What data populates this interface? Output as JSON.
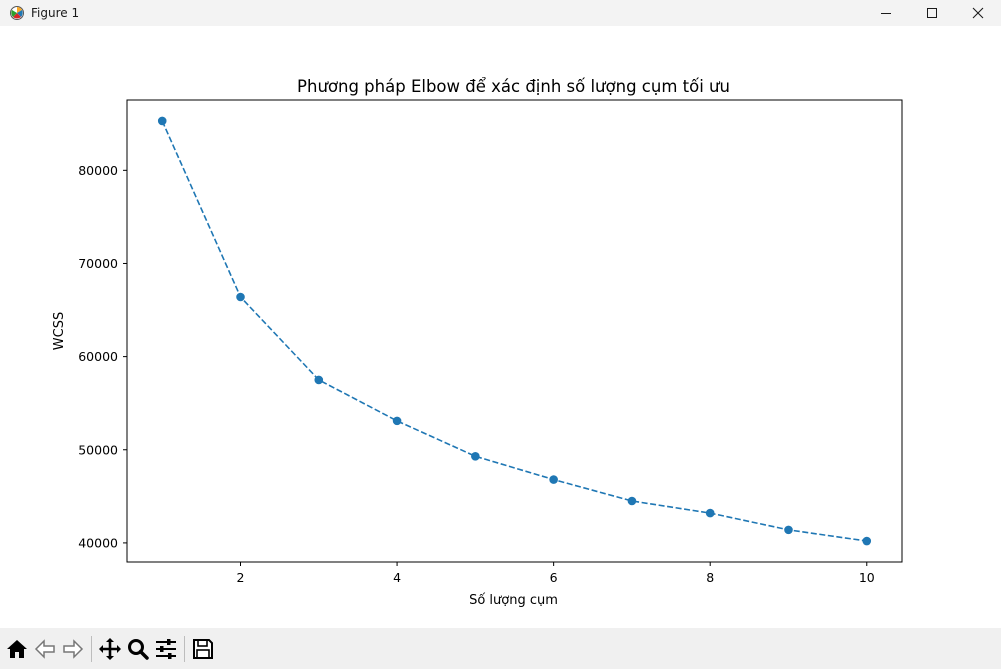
{
  "window": {
    "title": "Figure 1"
  },
  "toolbar": {
    "buttons": [
      "home-icon",
      "back-icon",
      "forward-icon",
      "pan-icon",
      "zoom-icon",
      "configure-subplots-icon",
      "save-icon"
    ]
  },
  "colors": {
    "series": "#1f77b4",
    "titlebar_bg": "#f3f3f3",
    "toolbar_bg": "#f0f0f0"
  },
  "chart_data": {
    "type": "line",
    "title": "Phương pháp Elbow để xác định số lượng cụm tối ưu",
    "xlabel": "Số lượng cụm",
    "ylabel": "WCSS",
    "x": [
      1,
      2,
      3,
      4,
      5,
      6,
      7,
      8,
      9,
      10
    ],
    "series": [
      {
        "values": [
          85300,
          66400,
          57500,
          53100,
          49300,
          46800,
          44500,
          43200,
          41400,
          40200
        ],
        "line_style": "dashed",
        "marker": "circle",
        "color": "#1f77b4"
      }
    ],
    "xticks": [
      2,
      4,
      6,
      8,
      10
    ],
    "yticks": [
      40000,
      50000,
      60000,
      70000,
      80000
    ],
    "xlim": [
      0.55,
      10.45
    ],
    "ylim": [
      37950,
      87550
    ],
    "grid": false,
    "legend": "none"
  }
}
